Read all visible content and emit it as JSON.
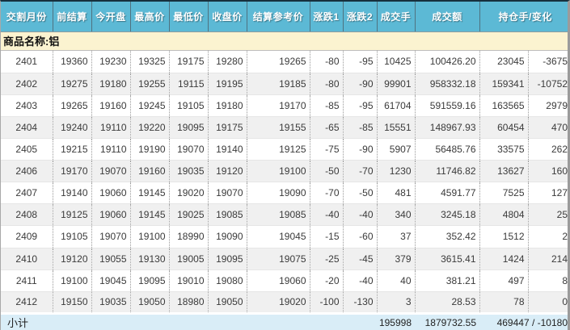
{
  "product": {
    "name_label": "商品名称:铝"
  },
  "header": {
    "columns": [
      "交割月份",
      "前结算",
      "今开盘",
      "最高价",
      "最低价",
      "收盘价",
      "结算参考价",
      "涨跌1",
      "涨跌2",
      "成交手",
      "成交额",
      "持仓手/变化"
    ]
  },
  "rows": [
    [
      "2401",
      "19360",
      "19230",
      "19325",
      "19175",
      "19280",
      "19265",
      "-80",
      "-95",
      "10425",
      "100426.20",
      "23045",
      "-3675"
    ],
    [
      "2402",
      "19275",
      "19180",
      "19255",
      "19115",
      "19195",
      "19185",
      "-80",
      "-90",
      "99901",
      "958332.18",
      "159341",
      "-10752"
    ],
    [
      "2403",
      "19265",
      "19160",
      "19245",
      "19105",
      "19180",
      "19170",
      "-85",
      "-95",
      "61704",
      "591559.16",
      "163565",
      "2979"
    ],
    [
      "2404",
      "19240",
      "19110",
      "19220",
      "19095",
      "19175",
      "19155",
      "-65",
      "-85",
      "15551",
      "148967.93",
      "60454",
      "470"
    ],
    [
      "2405",
      "19215",
      "19110",
      "19190",
      "19070",
      "19140",
      "19125",
      "-75",
      "-90",
      "5907",
      "56485.76",
      "33575",
      "262"
    ],
    [
      "2406",
      "19170",
      "19070",
      "19160",
      "19035",
      "19120",
      "19100",
      "-50",
      "-70",
      "1230",
      "11746.82",
      "13627",
      "160"
    ],
    [
      "2407",
      "19140",
      "19060",
      "19145",
      "19020",
      "19070",
      "19090",
      "-70",
      "-50",
      "481",
      "4591.77",
      "7525",
      "127"
    ],
    [
      "2408",
      "19125",
      "19060",
      "19145",
      "19025",
      "19085",
      "19085",
      "-40",
      "-40",
      "340",
      "3245.18",
      "4804",
      "25"
    ],
    [
      "2409",
      "19105",
      "19070",
      "19100",
      "18990",
      "19090",
      "19045",
      "-15",
      "-60",
      "37",
      "352.42",
      "1512",
      "2"
    ],
    [
      "2410",
      "19120",
      "19055",
      "19130",
      "19005",
      "19095",
      "19075",
      "-25",
      "-45",
      "379",
      "3615.41",
      "1424",
      "214"
    ],
    [
      "2411",
      "19100",
      "19045",
      "19095",
      "19010",
      "19080",
      "19060",
      "-20",
      "-40",
      "40",
      "381.21",
      "497",
      "8"
    ],
    [
      "2412",
      "19150",
      "19035",
      "19050",
      "18980",
      "19050",
      "19020",
      "-100",
      "-130",
      "3",
      "28.53",
      "78",
      "0"
    ]
  ],
  "footer": {
    "label": "小计",
    "volume": "195998",
    "turnover": "1879732.55",
    "open_interest_change": "469447 / -10180"
  },
  "colors": {
    "header_bg": "#5cb9d5",
    "product_row_bg": "#fbf3d0",
    "alt_row_bg": "#f0f0f0",
    "subtotal_bg": "#d9edf7",
    "top_border": "#16303e"
  }
}
